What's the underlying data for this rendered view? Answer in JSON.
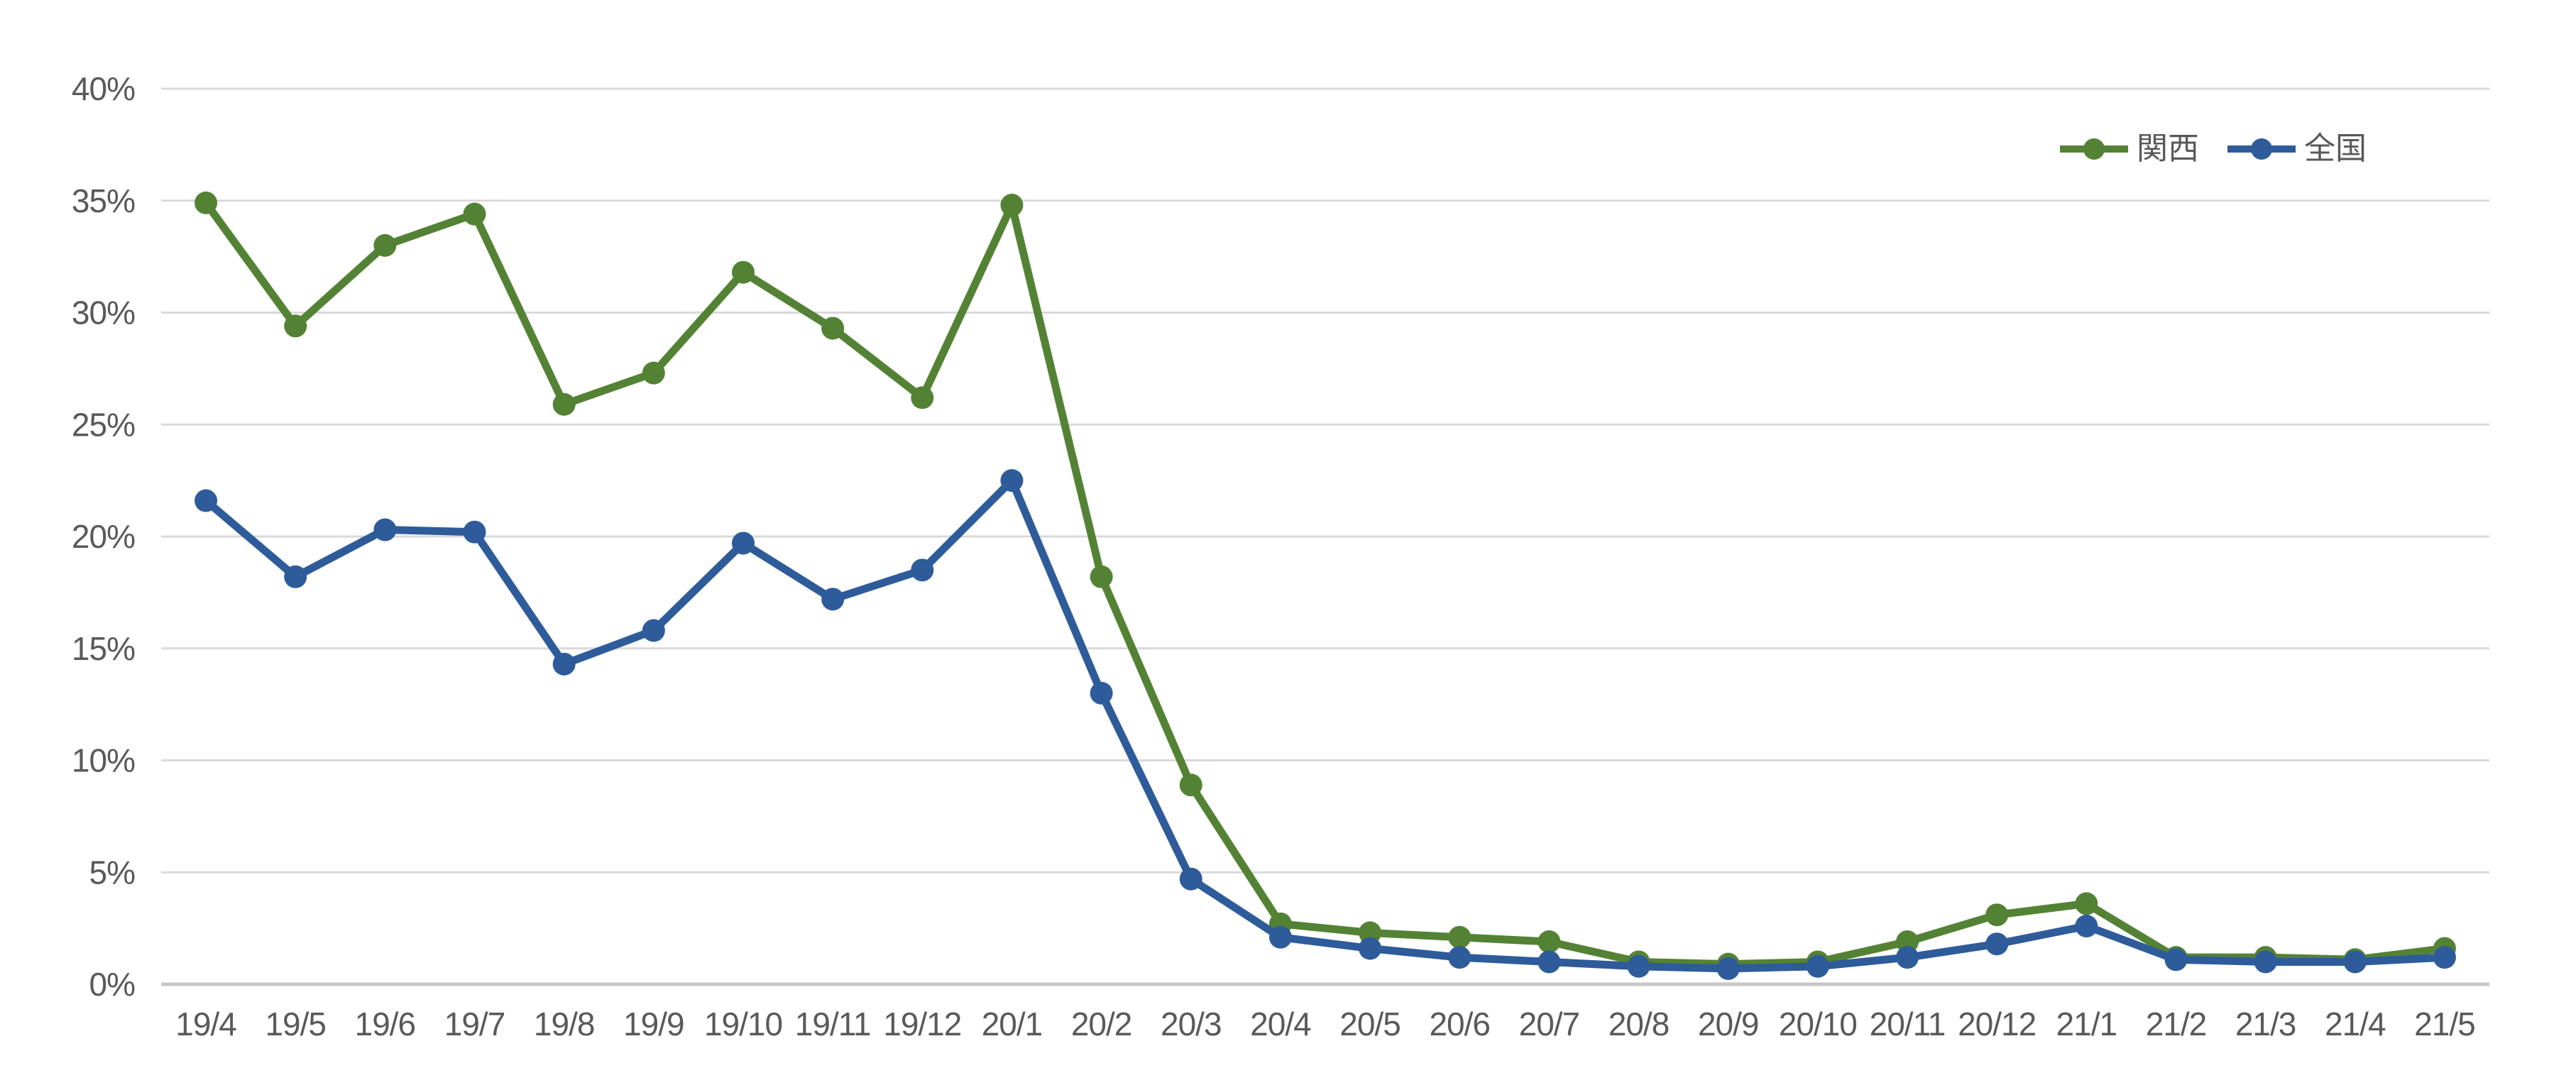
{
  "page": {
    "background": "#ffffff"
  },
  "chart_data": {
    "type": "line",
    "title": "",
    "xlabel": "",
    "ylabel": "",
    "categories": [
      "19/4",
      "19/5",
      "19/6",
      "19/7",
      "19/8",
      "19/9",
      "19/10",
      "19/11",
      "19/12",
      "20/1",
      "20/2",
      "20/3",
      "20/4",
      "20/5",
      "20/6",
      "20/7",
      "20/8",
      "20/9",
      "20/10",
      "20/11",
      "20/12",
      "21/1",
      "21/2",
      "21/3",
      "21/4",
      "21/5"
    ],
    "series": [
      {
        "name": "関西",
        "color": "#548235",
        "values": [
          34.9,
          29.4,
          33.0,
          34.4,
          25.9,
          27.3,
          31.8,
          29.3,
          26.2,
          34.8,
          18.2,
          8.9,
          2.7,
          2.3,
          2.1,
          1.9,
          1.0,
          0.9,
          1.0,
          1.9,
          3.1,
          3.6,
          1.2,
          1.2,
          1.1,
          1.6
        ]
      },
      {
        "name": "全国",
        "color": "#2e5b9a",
        "values": [
          21.6,
          18.2,
          20.3,
          20.2,
          14.3,
          15.8,
          19.7,
          17.2,
          18.5,
          22.5,
          13.0,
          4.7,
          2.1,
          1.6,
          1.2,
          1.0,
          0.8,
          0.7,
          0.8,
          1.2,
          1.8,
          2.6,
          1.1,
          1.0,
          1.0,
          1.2
        ]
      }
    ],
    "y_axis": {
      "min": 0,
      "max": 40,
      "step": 5,
      "format": "percent"
    },
    "y_tick_labels": [
      "0%",
      "5%",
      "10%",
      "15%",
      "20%",
      "25%",
      "30%",
      "35%",
      "40%"
    ],
    "grid": true,
    "legend_position": "top-right",
    "styles": {
      "gridline_color": "#d9d9d9",
      "zero_line_color": "#c6c6c6",
      "tick_label_color": "#595959",
      "legend_text_color": "#595959",
      "marker_radius": 16,
      "line_width": 11
    }
  }
}
